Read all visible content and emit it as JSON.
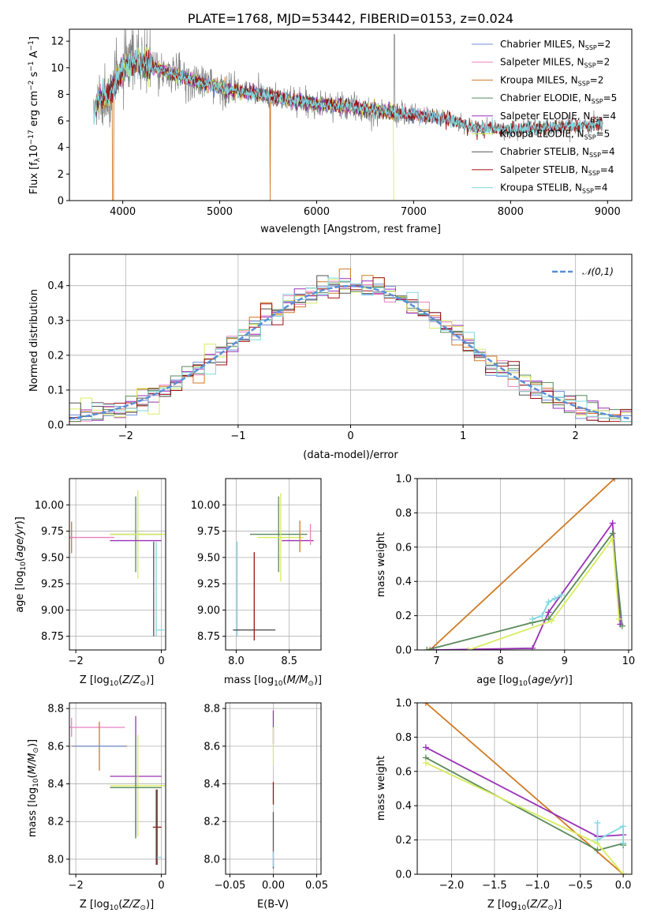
{
  "title": "PLATE=1768, MJD=53442, FIBERID=0153, z=0.024",
  "colors": {
    "chabrier_miles": "#6f8fd8",
    "salpeter_miles": "#e880c0",
    "kroupa_miles": "#d07a25",
    "chabrier_elodie": "#5a8a5a",
    "salpeter_elodie": "#9a30b8",
    "kroupa_elodie": "#d8ec60",
    "chabrier_stelib": "#555555",
    "salpeter_stelib": "#a01010",
    "kroupa_stelib": "#80d8e0",
    "data": "#808080",
    "normal": "#5b8fd8"
  },
  "chart_data": [
    {
      "id": "spectrum",
      "type": "line",
      "title": "PLATE=1768, MJD=53442, FIBERID=0153, z=0.024",
      "xlabel": "wavelength [Angstrom, rest frame]",
      "ylabel_main": "Flux [f",
      "ylabel_rest": "10",
      "xlim": [
        3450,
        9250
      ],
      "ylim": [
        0,
        12.9
      ],
      "xticks": [
        "4000",
        "5000",
        "6000",
        "7000",
        "8000",
        "9000"
      ],
      "xtick_values": [
        4000,
        5000,
        6000,
        7000,
        8000,
        9000
      ],
      "yticks": [
        "0",
        "2",
        "4",
        "6",
        "8",
        "10",
        "12"
      ],
      "ytick_values": [
        0,
        2,
        4,
        6,
        8,
        10,
        12
      ],
      "legend": [
        {
          "name": "Chabrier MILES, N",
          "n": "2",
          "color": "#6f8fd8"
        },
        {
          "name": "Salpeter MILES, N",
          "n": "2",
          "color": "#e880c0"
        },
        {
          "name": "Kroupa MILES, N",
          "n": "2",
          "color": "#d07a25"
        },
        {
          "name": "Chabrier ELODIE, N",
          "n": "5",
          "color": "#5a8a5a"
        },
        {
          "name": "Salpeter ELODIE, N",
          "n": "4",
          "color": "#9a30b8"
        },
        {
          "name": "Kroupa ELODIE, N",
          "n": "5",
          "color": "#d8ec60"
        },
        {
          "name": "Chabrier STELIB, N",
          "n": "4",
          "color": "#555555"
        },
        {
          "name": "Salpeter STELIB, N",
          "n": "4",
          "color": "#a01010"
        },
        {
          "name": "Kroupa STELIB, N",
          "n": "4",
          "color": "#80d8e0"
        }
      ],
      "continuum": [
        [
          3700,
          6.5
        ],
        [
          3750,
          7.6
        ],
        [
          3850,
          7.9
        ],
        [
          3950,
          9.3
        ],
        [
          4050,
          10.2
        ],
        [
          4150,
          10.5
        ],
        [
          4300,
          10.1
        ],
        [
          4500,
          9.6
        ],
        [
          4700,
          9.1
        ],
        [
          4900,
          8.7
        ],
        [
          5100,
          8.3
        ],
        [
          5300,
          8.1
        ],
        [
          5500,
          7.9
        ],
        [
          5700,
          7.6
        ],
        [
          5900,
          7.4
        ],
        [
          6100,
          7.2
        ],
        [
          6300,
          7.1
        ],
        [
          6500,
          6.9
        ],
        [
          6700,
          6.7
        ],
        [
          6900,
          6.5
        ],
        [
          7100,
          6.4
        ],
        [
          7300,
          6.2
        ],
        [
          7420,
          6.0
        ],
        [
          7600,
          5.5
        ],
        [
          7800,
          5.4
        ],
        [
          8000,
          5.3
        ],
        [
          8200,
          5.4
        ],
        [
          8400,
          5.5
        ],
        [
          8600,
          5.6
        ],
        [
          8800,
          5.7
        ],
        [
          8950,
          5.7
        ]
      ]
    },
    {
      "id": "residuals",
      "type": "histogram",
      "xlabel": "(data-model)/error",
      "ylabel": "Normed distribution",
      "xlim": [
        -2.5,
        2.5
      ],
      "ylim": [
        0,
        0.49
      ],
      "xticks": [
        "−2",
        "−1",
        "0",
        "1",
        "2"
      ],
      "xtick_values": [
        -2,
        -1,
        0,
        1,
        2
      ],
      "yticks": [
        "0.0",
        "0.1",
        "0.2",
        "0.3",
        "0.4"
      ],
      "ytick_values": [
        0,
        0.1,
        0.2,
        0.3,
        0.4
      ],
      "legend": "𝒩(0,1)",
      "bin_width": 0.1,
      "bin_start": -2.5
    },
    {
      "id": "age_vs_z",
      "type": "errorbar",
      "xlabel": "Z [log",
      "ylabel": "age  [log",
      "xlim": [
        -2.15,
        0.1
      ],
      "ylim": [
        8.62,
        10.25
      ],
      "xticks": [
        "−2",
        "0"
      ],
      "xtick_values": [
        -2,
        0
      ],
      "yticks": [
        "8.75",
        "9.00",
        "9.25",
        "9.50",
        "9.75",
        "10.00"
      ],
      "ytick_values": [
        8.75,
        9.0,
        9.25,
        9.5,
        9.75,
        10.0
      ],
      "points": [
        {
          "x": -2.1,
          "y": 9.69,
          "dx": 0.05,
          "dy": 0.15,
          "color": "#d07a25",
          "hw": 0.0
        },
        {
          "x": -2.1,
          "y": 9.69,
          "dx": 0.0,
          "dy": 0.0,
          "color": "#e880c0",
          "hw": 1.0
        },
        {
          "x": -0.6,
          "y": 9.72,
          "dx": 0.0,
          "dy": 0.36,
          "color": "#5a8a5a",
          "hw": 0.6
        },
        {
          "x": -0.55,
          "y": 9.72,
          "dx": 0.0,
          "dy": 0.42,
          "color": "#d8ec60",
          "hw": 0.65
        },
        {
          "x": -0.6,
          "y": 9.66,
          "dx": 0.0,
          "dy": 0.0,
          "color": "#9a30b8",
          "hw": 0.6
        },
        {
          "x": -0.18,
          "y": 9.2,
          "dx": 0.0,
          "dy": 0.45,
          "color": "#555555",
          "hw": 0.0
        },
        {
          "x": -0.12,
          "y": 9.2,
          "dx": 0.0,
          "dy": 0.45,
          "color": "#80d8e0",
          "hw": 0.0
        },
        {
          "x": -0.03,
          "y": 8.81,
          "dx": 0.1,
          "dy": 0.0,
          "color": "#80d8e0",
          "hw": 0.0
        }
      ]
    },
    {
      "id": "age_vs_mass",
      "type": "errorbar",
      "xlabel": "mass [log",
      "xlim": [
        7.9,
        8.8
      ],
      "ylim": [
        8.62,
        10.25
      ],
      "xticks": [
        "8.0",
        "8.5"
      ],
      "xtick_values": [
        8.0,
        8.5
      ],
      "yticks": [
        "8.75",
        "9.00",
        "9.25",
        "9.50",
        "9.75",
        "10.00"
      ],
      "ytick_values": [
        8.75,
        9.0,
        9.25,
        9.5,
        9.75,
        10.0
      ],
      "points": [
        {
          "x": 8.4,
          "y": 9.72,
          "dx": 0.27,
          "dy": 0.36,
          "color": "#5a8a5a"
        },
        {
          "x": 8.42,
          "y": 9.69,
          "dx": 0.22,
          "dy": 0.42,
          "color": "#d8ec60"
        },
        {
          "x": 8.58,
          "y": 9.66,
          "dx": 0.15,
          "dy": 0.0,
          "color": "#9a30b8"
        },
        {
          "x": 8.6,
          "y": 9.7,
          "dx": 0.0,
          "dy": 0.15,
          "color": "#d07a25"
        },
        {
          "x": 8.7,
          "y": 9.72,
          "dx": 0.0,
          "dy": 0.1,
          "color": "#e880c0"
        },
        {
          "x": 8.01,
          "y": 9.2,
          "dx": 0.0,
          "dy": 0.45,
          "color": "#80d8e0"
        },
        {
          "x": 8.01,
          "y": 8.81,
          "dx": 0.0,
          "dy": 0.0,
          "color": "#6f8fd8"
        },
        {
          "x": 8.17,
          "y": 8.81,
          "dx": 0.2,
          "dy": 0.0,
          "color": "#555555"
        },
        {
          "x": 8.17,
          "y": 9.13,
          "dx": 0.0,
          "dy": 0.42,
          "color": "#a01010"
        }
      ]
    },
    {
      "id": "weight_vs_age",
      "type": "line",
      "xlabel": "age  [log",
      "ylabel": "mass weight",
      "xlim": [
        6.7,
        10.05
      ],
      "ylim": [
        0,
        1.0
      ],
      "xticks": [
        "7",
        "8",
        "9",
        "10"
      ],
      "xtick_values": [
        7,
        8,
        9,
        10
      ],
      "yticks": [
        "0.0",
        "0.2",
        "0.4",
        "0.6",
        "0.8",
        "1.0"
      ],
      "ytick_values": [
        0,
        0.2,
        0.4,
        0.6,
        0.8,
        1.0
      ],
      "series": [
        {
          "color": "#d07a25",
          "x": [
            6.9,
            9.78
          ],
          "y": [
            0.0,
            1.0
          ]
        },
        {
          "color": "#9a30b8",
          "x": [
            6.95,
            8.5,
            8.75,
            9.75,
            9.87
          ],
          "y": [
            0.0,
            0.01,
            0.22,
            0.74,
            0.15
          ]
        },
        {
          "color": "#5a8a5a",
          "x": [
            6.85,
            8.5,
            8.75,
            9.75,
            9.9
          ],
          "y": [
            0.0,
            0.16,
            0.18,
            0.68,
            0.14
          ]
        },
        {
          "color": "#d8ec60",
          "x": [
            7.5,
            8.8,
            9.75,
            9.85
          ],
          "y": [
            0.0,
            0.17,
            0.65,
            0.18
          ]
        },
        {
          "color": "#80d8e0",
          "x": [
            8.5,
            8.65,
            8.75,
            8.85,
            8.95
          ],
          "y": [
            0.18,
            0.2,
            0.28,
            0.3,
            0.32
          ]
        }
      ]
    },
    {
      "id": "mass_vs_z",
      "type": "errorbar",
      "xlabel": "Z [log",
      "ylabel": "mass [log",
      "xlim": [
        -2.15,
        0.1
      ],
      "ylim": [
        7.92,
        8.83
      ],
      "xticks": [
        "−2",
        "0"
      ],
      "xtick_values": [
        -2,
        0
      ],
      "yticks": [
        "8.0",
        "8.2",
        "8.4",
        "8.6",
        "8.8"
      ],
      "ytick_values": [
        8.0,
        8.2,
        8.4,
        8.6,
        8.8
      ],
      "points": [
        {
          "x": -2.1,
          "y": 8.7,
          "dx": 1.25,
          "dy": 0.05,
          "color": "#e880c0"
        },
        {
          "x": -1.45,
          "y": 8.6,
          "dx": 0.65,
          "dy": 0.13,
          "color": "#d07a25"
        },
        {
          "x": -1.45,
          "y": 8.6,
          "dx": 0.62,
          "dy": 0.0,
          "color": "#6f8fd8"
        },
        {
          "x": -0.6,
          "y": 8.44,
          "dx": 0.6,
          "dy": 0.32,
          "color": "#9a30b8"
        },
        {
          "x": -0.55,
          "y": 8.39,
          "dx": 0.65,
          "dy": 0.27,
          "color": "#d8ec60"
        },
        {
          "x": -0.6,
          "y": 8.38,
          "dx": 0.6,
          "dy": 0.27,
          "color": "#5a8a5a"
        },
        {
          "x": -0.1,
          "y": 8.17,
          "dx": 0.1,
          "dy": 0.2,
          "color": "#a01010"
        },
        {
          "x": -0.12,
          "y": 8.17,
          "dx": 0.0,
          "dy": 0.2,
          "color": "#555555"
        },
        {
          "x": -0.05,
          "y": 8.01,
          "dx": 0.05,
          "dy": 0.0,
          "color": "#80d8e0"
        }
      ]
    },
    {
      "id": "mass_vs_ebv",
      "type": "errorbar",
      "xlabel": "E(B-V)",
      "xlim": [
        -0.055,
        0.055
      ],
      "ylim": [
        7.92,
        8.83
      ],
      "xticks": [
        "−0.05",
        "0.00",
        "0.05"
      ],
      "xtick_values": [
        -0.05,
        0,
        0.05
      ],
      "yticks": [
        "8.0",
        "8.2",
        "8.4",
        "8.6",
        "8.8"
      ],
      "ytick_values": [
        8.0,
        8.2,
        8.4,
        8.6,
        8.8
      ],
      "points": [
        {
          "x": 0,
          "y": 8.7,
          "dx": 0,
          "dy": 0.09,
          "color": "#9a30b8"
        },
        {
          "x": 0,
          "y": 8.6,
          "dx": 0,
          "dy": 0.1,
          "color": "#d8ec60"
        },
        {
          "x": 0,
          "y": 8.35,
          "dx": 0,
          "dy": 0.06,
          "color": "#a01010"
        },
        {
          "x": 0,
          "y": 8.1,
          "dx": 0,
          "dy": 0.15,
          "color": "#555555"
        },
        {
          "x": 0,
          "y": 8.0,
          "dx": 0,
          "dy": 0.04,
          "color": "#80d8e0"
        }
      ]
    },
    {
      "id": "weight_vs_z",
      "type": "line",
      "xlabel": "Z [log",
      "ylabel": "mass weight",
      "xlim": [
        -2.4,
        0.1
      ],
      "ylim": [
        0,
        1.0
      ],
      "xticks": [
        "−2.0",
        "−1.5",
        "−1.0",
        "−0.5",
        "0.0"
      ],
      "xtick_values": [
        -2.0,
        -1.5,
        -1.0,
        -0.5,
        0.0
      ],
      "yticks": [
        "0.0",
        "0.2",
        "0.4",
        "0.6",
        "0.8",
        "1.0"
      ],
      "ytick_values": [
        0,
        0.2,
        0.4,
        0.6,
        0.8,
        1.0
      ],
      "series": [
        {
          "color": "#d07a25",
          "x": [
            -2.3,
            0.0
          ],
          "y": [
            1.0,
            0.0
          ]
        },
        {
          "color": "#9a30b8",
          "x": [
            -2.3,
            -0.3,
            0.0
          ],
          "y": [
            0.74,
            0.22,
            0.23
          ]
        },
        {
          "color": "#5a8a5a",
          "x": [
            -2.3,
            -0.3,
            0.0,
            0.0
          ],
          "y": [
            0.68,
            0.14,
            0.18,
            0.17
          ]
        },
        {
          "color": "#d8ec60",
          "x": [
            -2.3,
            -0.3,
            0.0
          ],
          "y": [
            0.65,
            0.18,
            0.0
          ]
        },
        {
          "color": "#80d8e0",
          "x": [
            -0.3,
            -0.3,
            0.0,
            0.0
          ],
          "y": [
            0.3,
            0.2,
            0.28,
            0.18
          ]
        }
      ]
    }
  ]
}
